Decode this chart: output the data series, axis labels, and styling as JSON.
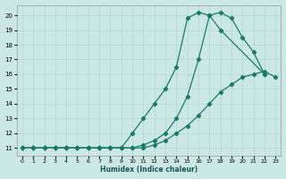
{
  "xlabel": "Humidex (Indice chaleur)",
  "background_color": "#cce8e4",
  "grid_color": "#b0d8d0",
  "line_color": "#1a7a6a",
  "xlim": [
    -0.5,
    23.5
  ],
  "ylim": [
    10.5,
    20.7
  ],
  "xticks": [
    0,
    1,
    2,
    3,
    4,
    5,
    6,
    7,
    8,
    9,
    10,
    11,
    12,
    13,
    14,
    15,
    16,
    17,
    18,
    19,
    20,
    21,
    22,
    23
  ],
  "yticks": [
    11,
    12,
    13,
    14,
    15,
    16,
    17,
    18,
    19,
    20
  ],
  "curve1_x": [
    0,
    1,
    2,
    3,
    4,
    5,
    6,
    7,
    8,
    9,
    10,
    11,
    12,
    13,
    14,
    15,
    16,
    17,
    18,
    22
  ],
  "curve1_y": [
    11,
    11,
    11,
    11,
    11,
    11,
    11,
    11,
    11,
    11,
    12,
    13,
    14,
    15,
    16.5,
    19.8,
    20.2,
    20,
    19,
    16
  ],
  "curve2_x": [
    0,
    1,
    2,
    3,
    4,
    5,
    6,
    7,
    8,
    9,
    10,
    11,
    12,
    13,
    14,
    15,
    16,
    17,
    18,
    19,
    20,
    21,
    22
  ],
  "curve2_y": [
    11,
    11,
    11,
    11,
    11,
    11,
    11,
    11,
    11,
    11,
    11,
    11.2,
    11.5,
    12,
    13,
    14.5,
    17,
    20,
    20.2,
    19.8,
    18.5,
    17.5,
    16
  ],
  "curve3_x": [
    0,
    1,
    2,
    3,
    4,
    5,
    6,
    7,
    8,
    9,
    10,
    11,
    12,
    13,
    14,
    15,
    16,
    17,
    18,
    19,
    20,
    21,
    22,
    23
  ],
  "curve3_y": [
    11,
    11,
    11,
    11,
    11,
    11,
    11,
    11,
    11,
    11,
    11,
    11,
    11.2,
    11.5,
    12,
    12.5,
    13.2,
    14,
    14.8,
    15.3,
    15.8,
    16.0,
    16.2,
    15.8
  ]
}
